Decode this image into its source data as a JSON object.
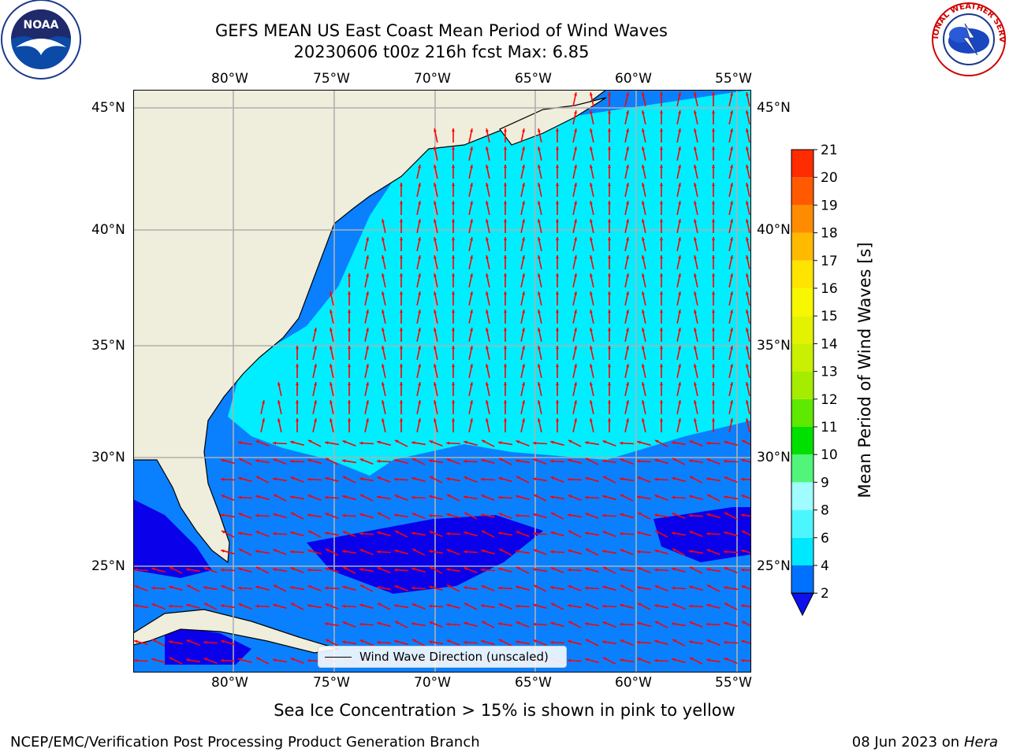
{
  "title_line1": "GEFS MEAN US East Coast Mean Period of Wind Waves",
  "title_line2": "20230606 t00z 216h fcst   Max: 6.85",
  "forecast": {
    "date": "20230606",
    "cycle": "t00z",
    "lead_hours": 216,
    "max_value": 6.85
  },
  "lon_labels": [
    "80°W",
    "75°W",
    "70°W",
    "65°W",
    "60°W",
    "55°W"
  ],
  "lat_labels": [
    "45°N",
    "40°N",
    "35°N",
    "30°N",
    "25°N"
  ],
  "legend_label": "Wind Wave Direction (unscaled)",
  "colorbar": {
    "label": "Mean Period of Wind Waves [s]",
    "ticks": [
      "2",
      "4",
      "6",
      "8",
      "9",
      "10",
      "11",
      "12",
      "13",
      "14",
      "15",
      "16",
      "17",
      "18",
      "19",
      "20",
      "21"
    ],
    "colors": [
      "#0070ff",
      "#00e8ff",
      "#4cf6ff",
      "#a0fcff",
      "#50f57a",
      "#00e000",
      "#5fe800",
      "#a6ec00",
      "#c8f000",
      "#e2f200",
      "#f7f700",
      "#ffe400",
      "#ffba00",
      "#ff8c00",
      "#ff5a00",
      "#ff2c00"
    ],
    "under_color": "#1010ee"
  },
  "map_colors": {
    "land": "#efeddb",
    "ocean_light": "#00eeff",
    "ocean_mid": "#0a80ff",
    "ocean_deep": "#0a00ea",
    "arrow": "#ff0000",
    "grid": "#b0b0b0"
  },
  "icons": {
    "left_logo": "noaa-logo",
    "right_logo": "nws-logo"
  },
  "logo_text": {
    "noaa": "NOAA",
    "nws": "NATIONAL WEATHER SERVICE"
  },
  "subnote": "Sea Ice Concentration > 15% is shown in pink to yellow",
  "credit": "NCEP/EMC/Verification Post Processing Product Generation Branch",
  "date_stamp": "08 Jun 2023 on",
  "machine": "Hera"
}
